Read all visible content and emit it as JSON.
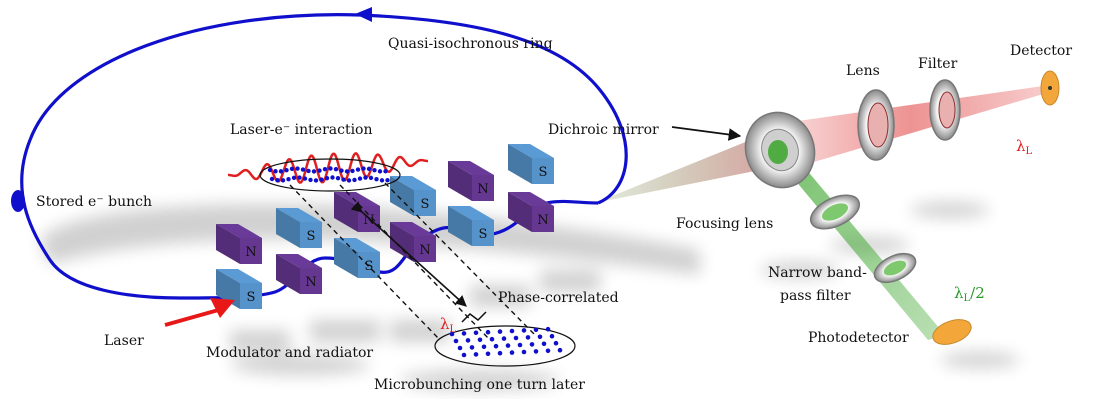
{
  "labels": {
    "ring": "Quasi-isochronous ring",
    "interaction": "Laser-e⁻ interaction",
    "bunch": "Stored e⁻ bunch",
    "laser": "Laser",
    "modulator": "Modulator and radiator",
    "microbunching": "Microbunching one turn later",
    "phase": "Phase-correlated",
    "lambda_mid": "λ",
    "lambda_mid_sub": "L",
    "dichroic": "Dichroic mirror",
    "focusing": "Focusing lens",
    "narrow_1": "Narrow band-",
    "narrow_2": "pass filter",
    "photodetector": "Photodetector",
    "lambda_half": "λ",
    "lambda_half_sub": "L",
    "lambda_half_tail": "/2",
    "lens": "Lens",
    "filter": "Filter",
    "detector": "Detector",
    "lambda_red": "λ",
    "lambda_red_sub": "L"
  },
  "magnets": {
    "north": "N",
    "south": "S"
  },
  "colors": {
    "beam": "#1010cc",
    "north": "#6a3a99",
    "south": "#5b9bd5",
    "red_light": "#e03a3a",
    "green_light": "#3aa52a",
    "detector": "#f3a73a",
    "laser_arrow": "#e81818"
  }
}
